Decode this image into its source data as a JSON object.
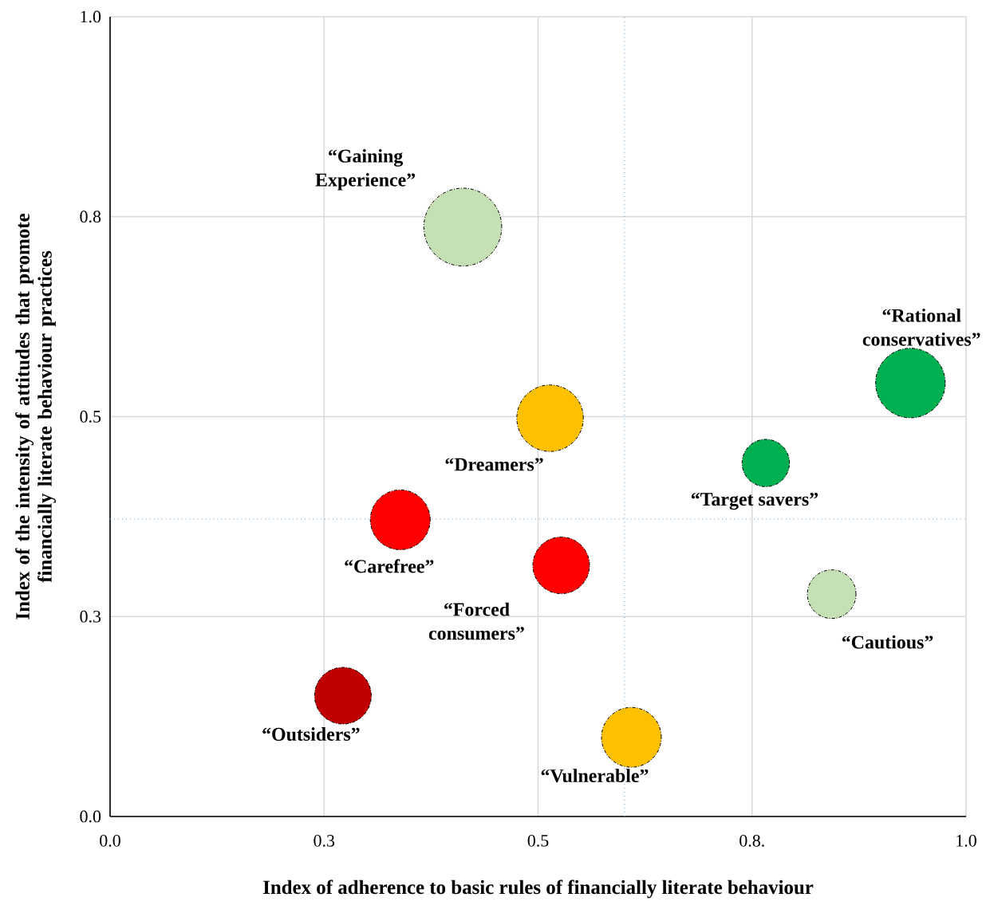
{
  "chart_data": {
    "type": "bubble",
    "xlabel": "Index of adherence to basic rules of financially literate behaviour",
    "ylabel": "Index of the intensity of attitudes that promote financially literate behaviour practices",
    "x": [
      0.412,
      0.935,
      0.514,
      0.766,
      0.339,
      0.527,
      0.843,
      0.272,
      0.609
    ],
    "values": [
      0.737,
      0.542,
      0.498,
      0.442,
      0.371,
      0.314,
      0.278,
      0.151,
      0.099
    ],
    "sizes": [
      1,
      0.8,
      0.73,
      0.37,
      0.59,
      0.53,
      0.39,
      0.53,
      0.59
    ],
    "colors": [
      "#c5e0b4",
      "#00b050",
      "#ffc000",
      "#00b050",
      "#ff0000",
      "#ff0000",
      "#c5e0b4",
      "#c00000",
      "#ffc000"
    ],
    "annotations": [
      "“Gaining Experience”",
      {
        "text": "“Rational conservatives”",
        "x": 0.935,
        "y": 0.542
      },
      {
        "text": "“Dreamers”",
        "x": 0.514,
        "y": 0.498
      },
      {
        "text": "“Target savers”",
        "x": 0.766,
        "y": 0.442
      },
      {
        "text": "“Carefree”",
        "x": 0.339,
        "y": 0.371
      },
      {
        "text": "“Forced consumers”",
        "x": 0.527,
        "y": 0.314
      },
      {
        "text": "“Cautious”",
        "x": 0.843,
        "y": 0.278
      },
      {
        "text": "“Outsiders”",
        "x": 0.272,
        "y": 0.151
      },
      {
        "text": "“Vulnerable”",
        "x": 0.609,
        "y": 0.099
      }
    ],
    "xlim": [
      0,
      1
    ],
    "ylim": [
      0,
      1
    ],
    "xticks": [
      {
        "value": 0,
        "label": "0.0"
      },
      {
        "value": 0.25,
        "label": "0.3"
      },
      {
        "value": 0.5,
        "label": "0.5"
      },
      {
        "value": 0.75,
        "label": "0.8."
      },
      {
        "value": 1,
        "label": "1.0"
      }
    ],
    "yticks": [
      {
        "value": 0,
        "label": "0.0"
      },
      {
        "value": 0.25,
        "label": "0.3"
      },
      {
        "value": 0.5,
        "label": "0.5"
      },
      {
        "value": 0.75,
        "label": "0.8"
      },
      {
        "value": 1,
        "label": "1.0"
      }
    ],
    "ref_lines": [
      {
        "axis": "x",
        "value": 0.601,
        "color": "#5b9bd5",
        "line_style": "dotted"
      },
      {
        "axis": "y",
        "value": 0.372,
        "color": "#5b9bd5",
        "line_style": "dotted"
      }
    ],
    "grid": true
  }
}
